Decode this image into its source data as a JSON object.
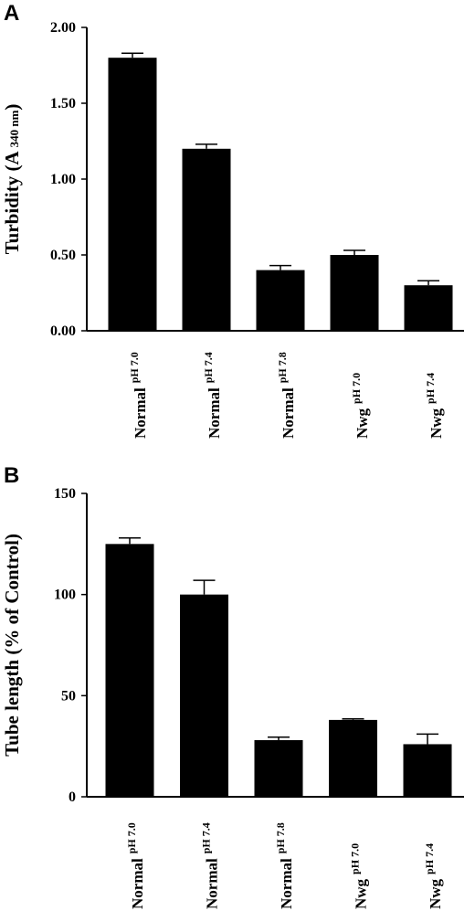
{
  "chart_data": [
    {
      "panel": "A",
      "type": "bar",
      "ylabel": "Turbidity (A",
      "ylabel_sub": "340 nm",
      "ylabel_close": ")",
      "ylim": [
        0,
        2.0
      ],
      "yticks": [
        "0.00",
        "0.50",
        "1.00",
        "1.50",
        "2.00"
      ],
      "ytick_values": [
        0,
        0.5,
        1.0,
        1.5,
        2.0
      ],
      "categories": [
        {
          "main": "Normal",
          "sub": "pH 7.0"
        },
        {
          "main": "Normal",
          "sub": "pH 7.4"
        },
        {
          "main": "Normal",
          "sub": "pH 7.8"
        },
        {
          "main": "Nwg",
          "sub": "pH 7.0"
        },
        {
          "main": "Nwg",
          "sub": "pH 7.4"
        }
      ],
      "values": [
        1.8,
        1.2,
        0.4,
        0.5,
        0.3
      ],
      "errors": [
        0.03,
        0.03,
        0.03,
        0.03,
        0.03
      ]
    },
    {
      "panel": "B",
      "type": "bar",
      "ylabel": "Tube length (% of Control)",
      "ylabel_sub": "",
      "ylabel_close": "",
      "ylim": [
        0,
        150
      ],
      "yticks": [
        "0",
        "50",
        "100",
        "150"
      ],
      "ytick_values": [
        0,
        50,
        100,
        150
      ],
      "categories": [
        {
          "main": "Normal",
          "sub": "pH 7.0"
        },
        {
          "main": "Normal",
          "sub": "pH 7.4"
        },
        {
          "main": "Normal",
          "sub": "pH 7.8"
        },
        {
          "main": "Nwg",
          "sub": "pH 7.0"
        },
        {
          "main": "Nwg",
          "sub": "pH 7.4"
        }
      ],
      "values": [
        125,
        100,
        28,
        38,
        26
      ],
      "errors": [
        3,
        7,
        1.5,
        0.5,
        5
      ]
    }
  ]
}
